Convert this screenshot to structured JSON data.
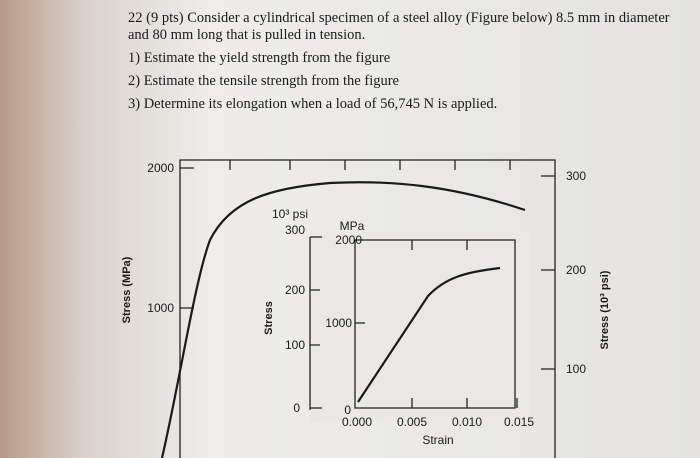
{
  "question": {
    "lines": [
      "22 (9 pts) Consider a cylindrical specimen of a steel alloy (Figure below) 8.5 mm in diameter",
      "and 80 mm long that is pulled in tension.",
      "1) Estimate the yield strength from the figure",
      "2) Estimate the tensile strength from the figure",
      "3) Determine its elongation when a load of 56,745 N is applied."
    ]
  },
  "figure": {
    "main": {
      "y_label": "Stress (MPa)",
      "y_ticks": [
        "2000",
        "1000"
      ],
      "y2_label": "Stress (10³ psi)",
      "y2_ticks": [
        "300",
        "200",
        "100"
      ]
    },
    "inset": {
      "psi_unit": "10³ psi",
      "psi_ticks": [
        "300",
        "200",
        "100",
        "0"
      ],
      "mpa_unit": "MPa",
      "mpa_ticks": [
        "2000",
        "1000",
        "0"
      ],
      "y_label": "Stress",
      "x_ticks": [
        "0.000",
        "0.005",
        "0.010",
        "0.015"
      ],
      "x_label": "Strain"
    }
  }
}
